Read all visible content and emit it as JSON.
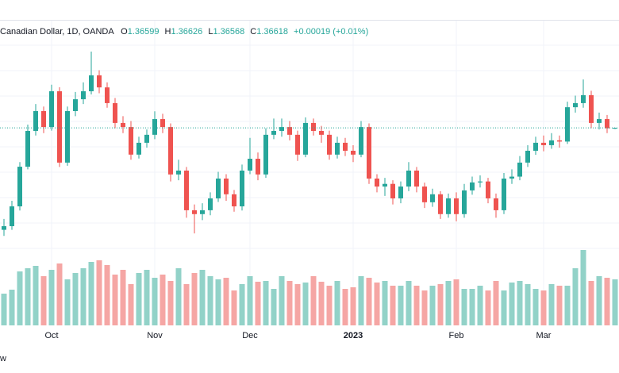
{
  "chart_data": {
    "type": "candlestick",
    "title": "Canadian Dollar, 1D, OANDA",
    "ohlc_labels": [
      "O",
      "H",
      "L",
      "C"
    ],
    "change": "+0.00019 (+0.01%)",
    "footer_fragment": "w",
    "up_color": "#26a69a",
    "down_color": "#ef5350",
    "volume_up_color": "#92d2c8",
    "volume_down_color": "#f5a6a4",
    "ylim": [
      1.3173,
      1.4092
    ],
    "volume_lim": [
      0,
      100
    ],
    "categories": [
      null,
      null,
      null,
      null,
      null,
      null,
      "Oct",
      null,
      null,
      null,
      null,
      null,
      null,
      null,
      null,
      null,
      null,
      null,
      null,
      "Nov",
      null,
      null,
      null,
      null,
      null,
      null,
      null,
      null,
      null,
      null,
      null,
      "Dec",
      null,
      null,
      null,
      null,
      null,
      null,
      null,
      null,
      null,
      null,
      null,
      null,
      "2023",
      null,
      null,
      null,
      null,
      null,
      null,
      null,
      null,
      null,
      null,
      null,
      null,
      "Feb",
      null,
      null,
      null,
      null,
      null,
      null,
      null,
      null,
      null,
      null,
      "Mar",
      null,
      null,
      null,
      null,
      null,
      null,
      null,
      null,
      null
    ],
    "open": [
      1.324,
      1.3255,
      1.3337,
      1.3501,
      1.3649,
      1.3731,
      1.3665,
      1.3813,
      1.3518,
      1.3731,
      1.378,
      1.3813,
      1.3879,
      1.3829,
      1.3764,
      1.3682,
      1.3665,
      1.3551,
      1.36,
      1.3633,
      1.3698,
      1.3665,
      1.3469,
      1.3485,
      1.3321,
      1.3305,
      1.3321,
      1.337,
      1.3452,
      1.3387,
      1.3337,
      1.3485,
      1.3534,
      1.3469,
      1.3633,
      1.3649,
      1.3665,
      1.3633,
      1.3551,
      1.3682,
      1.3649,
      1.3633,
      1.3551,
      1.36,
      1.3567,
      1.3551,
      1.3665,
      1.3452,
      1.3419,
      1.343,
      1.337,
      1.3419,
      1.3485,
      1.3419,
      1.3354,
      1.3387,
      1.3305,
      1.337,
      1.3305,
      1.3403,
      1.3436,
      1.344,
      1.337,
      1.3321,
      1.3452,
      1.346,
      1.3518,
      1.3567,
      1.36,
      1.359,
      1.361,
      1.3605,
      1.3747,
      1.3764,
      1.3797,
      1.3682,
      1.3698,
      1.36599
    ],
    "high": [
      1.3285,
      1.336,
      1.352,
      1.3675,
      1.376,
      1.375,
      1.384,
      1.383,
      1.375,
      1.381,
      1.385,
      1.3977,
      1.39,
      1.385,
      1.3785,
      1.371,
      1.369,
      1.3625,
      1.3655,
      1.373,
      1.372,
      1.368,
      1.353,
      1.35,
      1.3345,
      1.335,
      1.3395,
      1.348,
      1.347,
      1.3405,
      1.351,
      1.362,
      1.356,
      1.366,
      1.37,
      1.37,
      1.369,
      1.365,
      1.3705,
      1.37,
      1.367,
      1.365,
      1.3625,
      1.362,
      1.359,
      1.369,
      1.368,
      1.347,
      1.3455,
      1.3445,
      1.344,
      1.352,
      1.35,
      1.3435,
      1.341,
      1.34,
      1.339,
      1.3395,
      1.343,
      1.346,
      1.3465,
      1.3455,
      1.339,
      1.3475,
      1.349,
      1.3545,
      1.359,
      1.3625,
      1.363,
      1.364,
      1.363,
      1.377,
      1.3795,
      1.3862,
      1.3815,
      1.3725,
      1.3715,
      1.36626
    ],
    "low": [
      1.3215,
      1.324,
      1.332,
      1.349,
      1.363,
      1.364,
      1.365,
      1.35,
      1.3505,
      1.371,
      1.376,
      1.38,
      1.3805,
      1.3745,
      1.366,
      1.364,
      1.353,
      1.3535,
      1.358,
      1.3615,
      1.364,
      1.344,
      1.3445,
      1.329,
      1.3225,
      1.328,
      1.33,
      1.3355,
      1.336,
      1.3315,
      1.332,
      1.347,
      1.3445,
      1.3455,
      1.3615,
      1.3625,
      1.361,
      1.3525,
      1.354,
      1.363,
      1.36,
      1.353,
      1.3535,
      1.3545,
      1.352,
      1.354,
      1.343,
      1.3395,
      1.338,
      1.3345,
      1.335,
      1.34,
      1.3395,
      1.333,
      1.3335,
      1.3285,
      1.329,
      1.3275,
      1.329,
      1.3385,
      1.3415,
      1.335,
      1.329,
      1.3305,
      1.343,
      1.3445,
      1.35,
      1.355,
      1.3565,
      1.3575,
      1.358,
      1.3595,
      1.3725,
      1.3745,
      1.366,
      1.3655,
      1.364,
      1.36568
    ],
    "close": [
      1.3255,
      1.3337,
      1.3501,
      1.3649,
      1.3731,
      1.3665,
      1.3813,
      1.3518,
      1.3731,
      1.378,
      1.3813,
      1.3879,
      1.3829,
      1.3764,
      1.3682,
      1.3665,
      1.3551,
      1.36,
      1.3633,
      1.3698,
      1.3665,
      1.3469,
      1.3485,
      1.3321,
      1.3305,
      1.3321,
      1.337,
      1.3452,
      1.3387,
      1.3337,
      1.3485,
      1.3534,
      1.3469,
      1.3633,
      1.3649,
      1.3665,
      1.3633,
      1.3551,
      1.3682,
      1.3649,
      1.3633,
      1.3551,
      1.36,
      1.3567,
      1.3551,
      1.3665,
      1.3452,
      1.3419,
      1.343,
      1.337,
      1.3419,
      1.3485,
      1.3419,
      1.3354,
      1.3387,
      1.3305,
      1.337,
      1.3305,
      1.3403,
      1.3436,
      1.344,
      1.337,
      1.3321,
      1.3452,
      1.346,
      1.3518,
      1.3567,
      1.36,
      1.359,
      1.361,
      1.3605,
      1.3747,
      1.3764,
      1.3797,
      1.3682,
      1.3698,
      1.36599,
      1.36618
    ],
    "volume": [
      40,
      45,
      68,
      72,
      75,
      62,
      70,
      78,
      58,
      66,
      72,
      80,
      82,
      76,
      64,
      70,
      52,
      66,
      70,
      60,
      64,
      56,
      72,
      52,
      66,
      70,
      62,
      58,
      60,
      44,
      52,
      62,
      55,
      56,
      46,
      62,
      56,
      52,
      54,
      62,
      55,
      50,
      56,
      46,
      48,
      62,
      60,
      54,
      56,
      50,
      50,
      56,
      50,
      44,
      50,
      52,
      56,
      58,
      46,
      46,
      50,
      44,
      56,
      44,
      54,
      56,
      52,
      46,
      44,
      52,
      50,
      50,
      72,
      95,
      56,
      62,
      60,
      58
    ]
  }
}
